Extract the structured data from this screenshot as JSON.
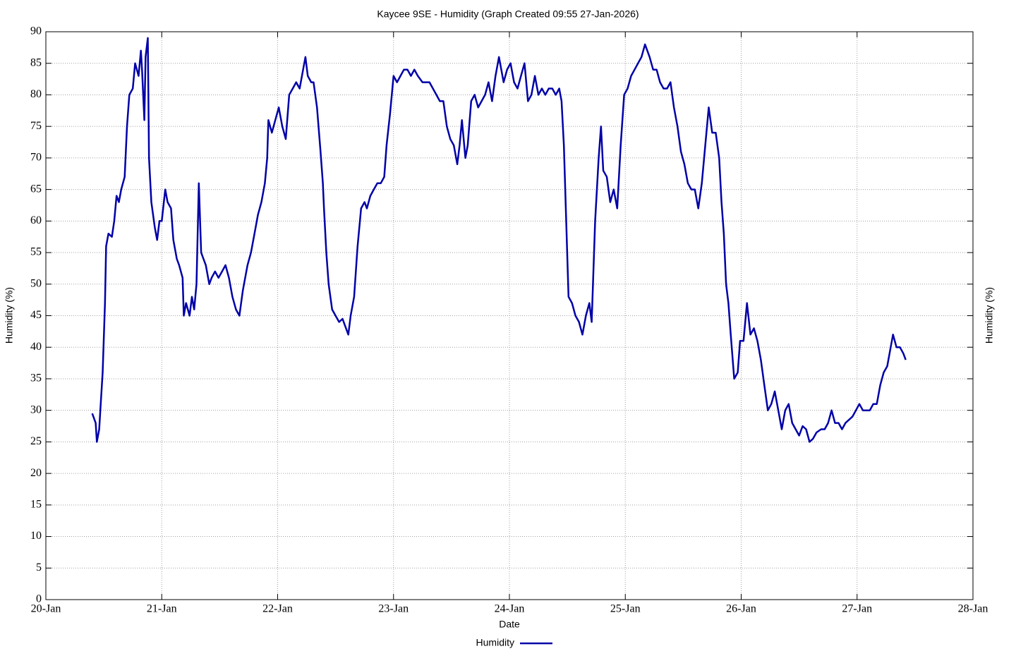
{
  "chart_data": {
    "type": "line",
    "title": "Kaycee 9SE - Humidity (Graph Created 09:55 27-Jan-2026)",
    "xlabel": "Date",
    "ylabel": "Humidity (%)",
    "y2label": "Humidity (%)",
    "xlim": [
      20,
      28
    ],
    "xticks": [
      {
        "value": 20,
        "label": "20-Jan"
      },
      {
        "value": 21,
        "label": "21-Jan"
      },
      {
        "value": 22,
        "label": "22-Jan"
      },
      {
        "value": 23,
        "label": "23-Jan"
      },
      {
        "value": 24,
        "label": "24-Jan"
      },
      {
        "value": 25,
        "label": "25-Jan"
      },
      {
        "value": 26,
        "label": "26-Jan"
      },
      {
        "value": 27,
        "label": "27-Jan"
      },
      {
        "value": 28,
        "label": "28-Jan"
      }
    ],
    "ylim": [
      0,
      90
    ],
    "yticks": [
      0,
      5,
      10,
      15,
      20,
      25,
      30,
      35,
      40,
      45,
      50,
      55,
      60,
      65,
      70,
      75,
      80,
      85,
      90
    ],
    "grid": true,
    "legend": "bottom",
    "series": [
      {
        "name": "Humidity",
        "color": "#0000a8",
        "x": [
          20.4,
          20.43,
          20.44,
          20.46,
          20.47,
          20.49,
          20.51,
          20.52,
          20.54,
          20.57,
          20.59,
          20.61,
          20.63,
          20.65,
          20.68,
          20.7,
          20.72,
          20.75,
          20.77,
          20.8,
          20.82,
          20.83,
          20.85,
          20.86,
          20.88,
          20.89,
          20.91,
          20.94,
          20.96,
          20.98,
          21.0,
          21.03,
          21.05,
          21.08,
          21.1,
          21.13,
          21.15,
          21.18,
          21.19,
          21.21,
          21.24,
          21.26,
          21.28,
          21.3,
          21.32,
          21.34,
          21.36,
          21.38,
          21.41,
          21.43,
          21.46,
          21.49,
          21.52,
          21.55,
          21.58,
          21.61,
          21.64,
          21.67,
          21.7,
          21.74,
          21.77,
          21.8,
          21.83,
          21.86,
          21.89,
          21.91,
          21.92,
          21.95,
          21.98,
          22.01,
          22.04,
          22.07,
          22.1,
          22.13,
          22.16,
          22.19,
          22.22,
          22.24,
          22.26,
          22.29,
          22.31,
          22.34,
          22.37,
          22.39,
          22.4,
          22.42,
          22.44,
          22.47,
          22.5,
          22.53,
          22.56,
          22.59,
          22.61,
          22.63,
          22.66,
          22.69,
          22.72,
          22.75,
          22.77,
          22.8,
          22.83,
          22.86,
          22.89,
          22.92,
          22.94,
          22.97,
          23.0,
          23.03,
          23.06,
          23.09,
          23.12,
          23.15,
          23.18,
          23.21,
          23.25,
          23.28,
          23.31,
          23.34,
          23.37,
          23.4,
          23.43,
          23.46,
          23.49,
          23.52,
          23.55,
          23.57,
          23.59,
          23.62,
          23.64,
          23.67,
          23.7,
          23.73,
          23.76,
          23.79,
          23.82,
          23.85,
          23.88,
          23.91,
          23.95,
          23.98,
          24.01,
          24.04,
          24.07,
          24.1,
          24.13,
          24.16,
          24.19,
          24.22,
          24.25,
          24.28,
          24.31,
          24.34,
          24.37,
          24.4,
          24.43,
          24.45,
          24.47,
          24.49,
          24.51,
          24.54,
          24.57,
          24.6,
          24.63,
          24.66,
          24.69,
          24.71,
          24.74,
          24.77,
          24.79,
          24.81,
          24.84,
          24.87,
          24.9,
          24.93,
          24.96,
          24.99,
          25.02,
          25.05,
          25.08,
          25.11,
          25.14,
          25.17,
          25.21,
          25.24,
          25.27,
          25.3,
          25.33,
          25.36,
          25.39,
          25.42,
          25.45,
          25.48,
          25.51,
          25.54,
          25.57,
          25.6,
          25.63,
          25.66,
          25.69,
          25.72,
          25.75,
          25.78,
          25.81,
          25.83,
          25.85,
          25.87,
          25.89,
          25.91,
          25.94,
          25.97,
          25.99,
          26.02,
          26.05,
          26.08,
          26.11,
          26.14,
          26.17,
          26.2,
          26.23,
          26.26,
          26.29,
          26.32,
          26.35,
          26.38,
          26.41,
          26.44,
          26.47,
          26.5,
          26.53,
          26.56,
          26.59,
          26.62,
          26.65,
          26.69,
          26.72,
          26.75,
          26.78,
          26.81,
          26.84,
          26.87,
          26.9,
          26.93,
          26.96,
          26.99,
          27.02,
          27.05,
          27.08,
          27.11,
          27.14,
          27.17,
          27.2,
          27.23,
          27.26,
          27.29,
          27.31,
          27.34,
          27.37,
          27.4,
          27.42
        ],
        "values": [
          29.5,
          28,
          25,
          27,
          30,
          36,
          47,
          56,
          58,
          57.5,
          60,
          64,
          63,
          65,
          67,
          75,
          80,
          81,
          85,
          83,
          87,
          84,
          76,
          86,
          89,
          70,
          63,
          59,
          57,
          60,
          60,
          65,
          63,
          62,
          57,
          54,
          53,
          51,
          45,
          47,
          45,
          48,
          46,
          50,
          66,
          55,
          54,
          53,
          50,
          51,
          52,
          51,
          52,
          53,
          51,
          48,
          46,
          45,
          49,
          53,
          55,
          58,
          61,
          63,
          66,
          70,
          76,
          74,
          76,
          78,
          75,
          73,
          80,
          81,
          82,
          81,
          84,
          86,
          83,
          82,
          82,
          78,
          71,
          66,
          62,
          55,
          50,
          46,
          45,
          44,
          44.5,
          43,
          42,
          45,
          48,
          56,
          62,
          63,
          62,
          64,
          65,
          66,
          66,
          67,
          72,
          77,
          83,
          82,
          83,
          84,
          84,
          83,
          84,
          83,
          82,
          82,
          82,
          81,
          80,
          79,
          79,
          75,
          73,
          72,
          69,
          72,
          76,
          70,
          72,
          79,
          80,
          78,
          79,
          80,
          82,
          79,
          83,
          86,
          82,
          84,
          85,
          82,
          81,
          83,
          85,
          79,
          80,
          83,
          80,
          81,
          80,
          81,
          81,
          80,
          81,
          79,
          72,
          60,
          48,
          47,
          45,
          44,
          42,
          45,
          47,
          44,
          60,
          70,
          75,
          68,
          67,
          63,
          65,
          62,
          72,
          80,
          81,
          83,
          84,
          85,
          86,
          88,
          86,
          84,
          84,
          82,
          81,
          81,
          82,
          78,
          75,
          71,
          69,
          66,
          65,
          65,
          62,
          66,
          72,
          78,
          74,
          74,
          70,
          63,
          58,
          50,
          47,
          42,
          35,
          36,
          41,
          41,
          47,
          42,
          43,
          41,
          38,
          34,
          30,
          31,
          33,
          30,
          27,
          30,
          31,
          28,
          27,
          26,
          27.5,
          27,
          25,
          25.5,
          26.5,
          27,
          27,
          28,
          30,
          28,
          28,
          27,
          28,
          28.5,
          29,
          30,
          31,
          30,
          30,
          30,
          31,
          31,
          34,
          36,
          37,
          40,
          42,
          40,
          40,
          39,
          38
        ]
      }
    ]
  }
}
